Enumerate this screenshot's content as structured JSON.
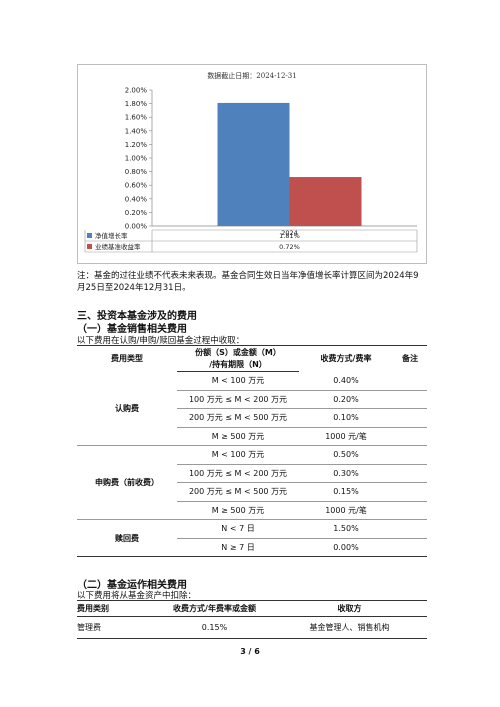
{
  "chart_data": {
    "type": "bar",
    "title": "数据截止日期：2024-12-31",
    "categories": [
      "2024"
    ],
    "series": [
      {
        "name": "净值增长率",
        "values": [
          1.81
        ],
        "label": "1.81%",
        "color": "#4f81bd"
      },
      {
        "name": "业绩基准收益率",
        "values": [
          0.72
        ],
        "label": "0.72%",
        "color": "#c0504d"
      }
    ],
    "ylim": [
      0,
      2.0
    ],
    "yticks": [
      "0.00%",
      "0.20%",
      "0.40%",
      "0.60%",
      "0.80%",
      "1.00%",
      "1.20%",
      "1.40%",
      "1.60%",
      "1.80%",
      "2.00%"
    ],
    "grid": false,
    "legend": "table-below"
  },
  "note": "注：基金的过往业绩不代表未来表现。基金合同生效日当年净值增长率计算区间为2024年9月25日至2024年12月31日。",
  "section3": {
    "title": "三、投资本基金涉及的费用",
    "sub1": {
      "title": "（一）基金销售相关费用",
      "desc": "以下费用在认购/申购/赎回基金过程中收取：",
      "headers": {
        "type": "费用类型",
        "share": "份额（S）或金额（M）",
        "share2": "/持有期限（N）",
        "method": "收费方式/费率",
        "remark": "备注"
      },
      "groups": [
        {
          "type": "认购费",
          "rows": [
            {
              "cond": "M < 100 万元",
              "rate": "0.40%"
            },
            {
              "cond": "100 万元 ≤ M < 200 万元",
              "rate": "0.20%"
            },
            {
              "cond": "200 万元 ≤ M < 500 万元",
              "rate": "0.10%"
            },
            {
              "cond": "M ≥ 500 万元",
              "rate": "1000 元/笔"
            }
          ]
        },
        {
          "type": "申购费（前收费）",
          "rows": [
            {
              "cond": "M < 100 万元",
              "rate": "0.50%"
            },
            {
              "cond": "100 万元 ≤ M < 200 万元",
              "rate": "0.30%"
            },
            {
              "cond": "200 万元 ≤ M < 500 万元",
              "rate": "0.15%"
            },
            {
              "cond": "M ≥ 500 万元",
              "rate": "1000 元/笔"
            }
          ]
        },
        {
          "type": "赎回费",
          "rows": [
            {
              "cond": "N < 7 日",
              "rate": "1.50%"
            },
            {
              "cond": "N ≥ 7 日",
              "rate": "0.00%"
            }
          ]
        }
      ]
    },
    "sub2": {
      "title": "（二）基金运作相关费用",
      "desc": "以下费用将从基金资产中扣除：",
      "headers": {
        "type": "费用类别",
        "method": "收费方式/年费率或金额",
        "payee": "收取方"
      },
      "rows": [
        {
          "type": "管理费",
          "method": "0.15%",
          "payee": "基金管理人、销售机构"
        }
      ]
    }
  },
  "page_number": "3 / 6"
}
